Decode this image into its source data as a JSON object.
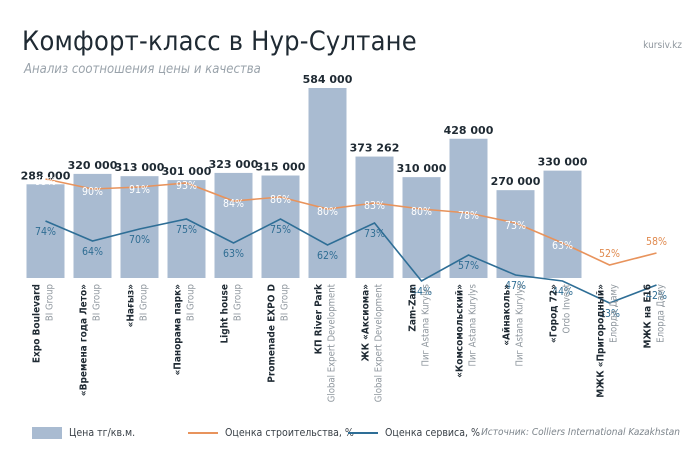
{
  "header": {
    "title": "Комфорт-класс в Нур-Султане",
    "subtitle": "Анализ соотношения цены и качества",
    "site": "kursiv.kz"
  },
  "legend": {
    "price": "Цена тг/кв.м.",
    "construction": "Оценка строительства, %",
    "service": "Оценка сервиса, %",
    "source": "Источник: Colliers International Kazakhstan"
  },
  "colors": {
    "bar": "#a9bbd1",
    "construction_line": "#e8935c",
    "construction_label": "#e08a4f",
    "service_line": "#2e6e96",
    "service_label": "#2f6d93",
    "bar_label_construction": "#ffffff",
    "bar_label_service": "#2f6d93"
  },
  "chart_data": {
    "type": "bar",
    "categories": [
      {
        "name": "Expo Boulevard",
        "developer": "BI Group"
      },
      {
        "name": "«Времена года Лето»",
        "developer": "BI Group"
      },
      {
        "name": "«Нағыз»",
        "developer": "BI Group"
      },
      {
        "name": "«Панорама парк»",
        "developer": "BI Group"
      },
      {
        "name": "Light house",
        "developer": "BI Group"
      },
      {
        "name": "Promenade EXPO D",
        "developer": "BI Group"
      },
      {
        "name": "КП River Park",
        "developer": "Global Expert Development"
      },
      {
        "name": "ЖК «Аксиома»",
        "developer": "Global Expert Development"
      },
      {
        "name": "Zam-Zam",
        "developer": "Пиг Astana Kurylys"
      },
      {
        "name": "«Комсомольский»",
        "developer": "Пиг Astana Kurylys"
      },
      {
        "name": "«Айнаколь»",
        "developer": "Пиг Astana Kurylys"
      },
      {
        "name": "«Город 72»",
        "developer": "Ordo Invest"
      },
      {
        "name": "МЖК «Пригородный»",
        "developer": "Елорда Даму"
      },
      {
        "name": "МЖК на Е16",
        "developer": "Елорда Даму"
      }
    ],
    "price_labels": [
      "288 000",
      "320 000",
      "313 000",
      "301 000",
      "323 000",
      "315 000",
      "584 000",
      "373 262",
      "310 000",
      "428 000",
      "270 000",
      "330 000",
      "",
      ""
    ],
    "series": [
      {
        "name": "Цена тг/кв.м.",
        "kind": "bar",
        "values": [
          288000,
          320000,
          313000,
          301000,
          323000,
          315000,
          584000,
          373262,
          310000,
          428000,
          270000,
          330000,
          null,
          null
        ]
      },
      {
        "name": "Оценка строительства, %",
        "kind": "line",
        "values": [
          95,
          90,
          91,
          93,
          84,
          86,
          80,
          83,
          80,
          78,
          73,
          63,
          52,
          58
        ],
        "labels": [
          "95%",
          "90%",
          "91%",
          "93%",
          "84%",
          "86%",
          "80%",
          "83%",
          "80%",
          "78%",
          "73%",
          "63%",
          "52%",
          "58%"
        ]
      },
      {
        "name": "Оценка сервиса, %",
        "kind": "line",
        "values": [
          74,
          64,
          70,
          75,
          63,
          75,
          62,
          73,
          44,
          57,
          47,
          44,
          33,
          42
        ],
        "labels": [
          "74%",
          "64%",
          "70%",
          "75%",
          "63%",
          "75%",
          "62%",
          "73%",
          "44%",
          "57%",
          "47%",
          "44%",
          "33%",
          "42%"
        ]
      }
    ],
    "ylim_price": [
      0,
      600000
    ]
  }
}
